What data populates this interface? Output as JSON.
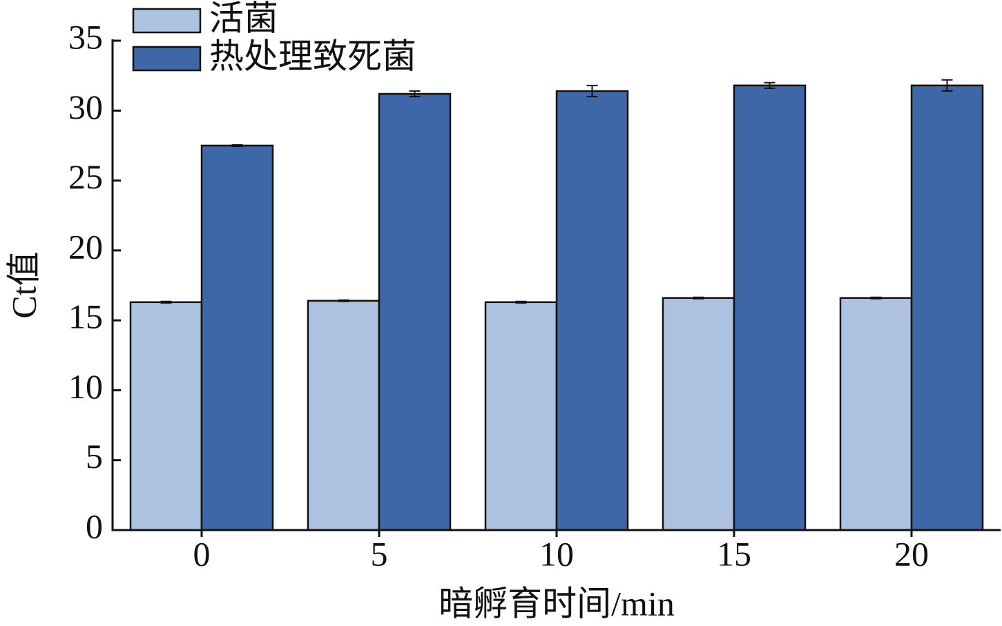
{
  "chart_data": {
    "type": "bar",
    "x_label": "暗孵育时间/min",
    "y_label": "Ct值",
    "categories": [
      "0",
      "5",
      "10",
      "15",
      "20"
    ],
    "series": [
      {
        "name": "活菌",
        "color": "#adc2e0",
        "values": [
          16.3,
          16.4,
          16.3,
          16.6,
          16.6
        ],
        "errors": [
          0.05,
          0.05,
          0.05,
          0.05,
          0.05
        ]
      },
      {
        "name": "热处理致死菌",
        "color": "#3d67a7",
        "values": [
          27.5,
          31.2,
          31.4,
          31.8,
          31.8
        ],
        "errors": [
          0.05,
          0.2,
          0.4,
          0.2,
          0.4
        ]
      }
    ],
    "ylim": [
      0,
      35
    ],
    "yticks": [
      0,
      5,
      10,
      15,
      20,
      25,
      30,
      35
    ]
  }
}
